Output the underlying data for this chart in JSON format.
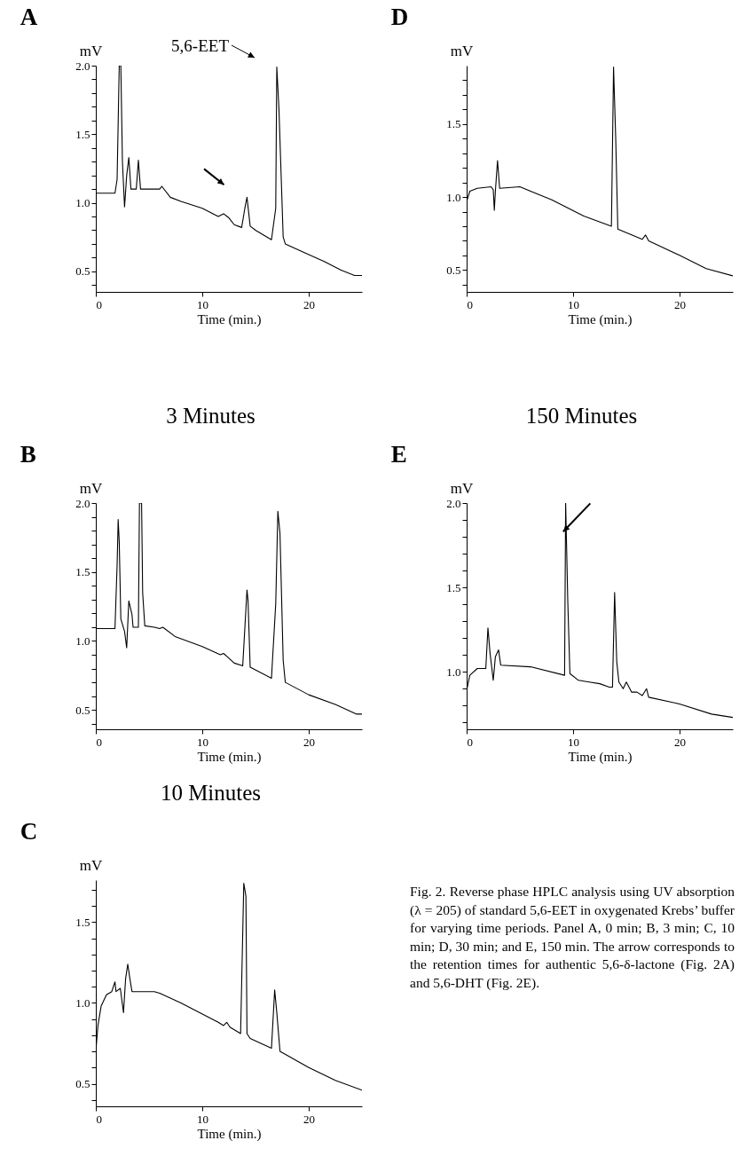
{
  "chart_data": [
    {
      "type": "line",
      "title": "A",
      "xlabel": "Time (min.)",
      "ylabel": "mV",
      "xlim": [
        0,
        25
      ],
      "xticks": [
        0,
        10,
        20
      ],
      "ylim": [
        0.35,
        2.0
      ],
      "yticks": [
        {
          "value": 0.4,
          "label": null
        },
        {
          "value": 0.5,
          "label": "0.5"
        },
        {
          "value": 0.6,
          "label": null
        },
        {
          "value": 0.7,
          "label": null
        },
        {
          "value": 0.8,
          "label": null
        },
        {
          "value": 0.9,
          "label": null
        },
        {
          "value": 1,
          "label": "1.0"
        },
        {
          "value": 1.1,
          "label": null
        },
        {
          "value": 1.2,
          "label": null
        },
        {
          "value": 1.3,
          "label": null
        },
        {
          "value": 1.4,
          "label": null
        },
        {
          "value": 1.5,
          "label": "1.5"
        },
        {
          "value": 1.6,
          "label": null
        },
        {
          "value": 1.7,
          "label": null
        },
        {
          "value": 1.8,
          "label": null
        },
        {
          "value": 1.9,
          "label": null
        },
        {
          "value": 2,
          "label": "2.0"
        }
      ],
      "annotations": [
        {
          "text": "5,6-EET",
          "x": 17,
          "y": 2.0
        }
      ],
      "series": [
        {
          "color": "#000000",
          "x": [
            0,
            1.8,
            2.0,
            2.2,
            2.35,
            2.5,
            2.7,
            2.9,
            3.1,
            3.3,
            3.8,
            4.0,
            4.2,
            6.0,
            6.2,
            7.0,
            8,
            10,
            11.5,
            12,
            12.5,
            13,
            13.7,
            14.0,
            14.2,
            14.5,
            15,
            16.5,
            16.9,
            17.0,
            17.2,
            17.6,
            17.8,
            19.5,
            21.5,
            23,
            24.3,
            25
          ],
          "values": [
            1.07,
            1.07,
            1.17,
            2.0,
            2.0,
            1.3,
            0.97,
            1.2,
            1.33,
            1.1,
            1.1,
            1.31,
            1.1,
            1.1,
            1.12,
            1.04,
            1.01,
            0.96,
            0.9,
            0.92,
            0.89,
            0.84,
            0.82,
            0.96,
            1.04,
            0.83,
            0.8,
            0.73,
            0.96,
            1.99,
            1.69,
            0.75,
            0.7,
            0.64,
            0.57,
            0.51,
            0.47,
            0.47
          ]
        }
      ]
    },
    {
      "type": "line",
      "title": "B",
      "subtitle": "3 Minutes",
      "xlabel": "Time (min.)",
      "ylabel": "mV",
      "xlim": [
        0,
        25
      ],
      "xticks": [
        0,
        10,
        20
      ],
      "ylim": [
        0.36,
        2.0
      ],
      "yticks": [
        {
          "value": 0.4,
          "label": null
        },
        {
          "value": 0.5,
          "label": "0.5"
        },
        {
          "value": 0.6,
          "label": null
        },
        {
          "value": 0.7,
          "label": null
        },
        {
          "value": 0.8,
          "label": null
        },
        {
          "value": 0.9,
          "label": null
        },
        {
          "value": 1,
          "label": "1.0"
        },
        {
          "value": 1.1,
          "label": null
        },
        {
          "value": 1.2,
          "label": null
        },
        {
          "value": 1.3,
          "label": null
        },
        {
          "value": 1.4,
          "label": null
        },
        {
          "value": 1.5,
          "label": "1.5"
        },
        {
          "value": 1.6,
          "label": null
        },
        {
          "value": 1.7,
          "label": null
        },
        {
          "value": 1.8,
          "label": null
        },
        {
          "value": 1.9,
          "label": null
        },
        {
          "value": 2,
          "label": "2.0"
        }
      ],
      "series": [
        {
          "color": "#000000",
          "x": [
            0,
            1.8,
            2.0,
            2.1,
            2.2,
            2.35,
            2.7,
            2.9,
            3.1,
            3.4,
            3.5,
            4.0,
            4.1,
            4.3,
            4.4,
            4.6,
            5.5,
            6.0,
            6.3,
            7.5,
            10,
            11.7,
            12,
            13,
            13.8,
            14.2,
            14.3,
            14.5,
            16.5,
            16.9,
            17.1,
            17.3,
            17.6,
            17.8,
            20,
            22.5,
            24.5,
            25
          ],
          "values": [
            1.09,
            1.09,
            1.55,
            1.88,
            1.72,
            1.16,
            1.07,
            0.95,
            1.29,
            1.19,
            1.1,
            1.1,
            2.0,
            2.0,
            1.35,
            1.11,
            1.1,
            1.09,
            1.1,
            1.03,
            0.96,
            0.9,
            0.91,
            0.84,
            0.82,
            1.37,
            1.29,
            0.81,
            0.73,
            1.27,
            1.94,
            1.78,
            0.86,
            0.7,
            0.61,
            0.54,
            0.47,
            0.47
          ]
        }
      ]
    },
    {
      "type": "line",
      "title": "C",
      "subtitle": "10 Minutes",
      "xlabel": "Time (min.)",
      "ylabel": "mV",
      "xlim": [
        0,
        25
      ],
      "xticks": [
        0,
        10,
        20
      ],
      "ylim": [
        0.36,
        1.76
      ],
      "yticks": [
        {
          "value": 0.4,
          "label": null
        },
        {
          "value": 0.5,
          "label": "0.5"
        },
        {
          "value": 0.6,
          "label": null
        },
        {
          "value": 0.7,
          "label": null
        },
        {
          "value": 0.8,
          "label": null
        },
        {
          "value": 0.9,
          "label": null
        },
        {
          "value": 1,
          "label": "1.0"
        },
        {
          "value": 1.1,
          "label": null
        },
        {
          "value": 1.2,
          "label": null
        },
        {
          "value": 1.3,
          "label": null
        },
        {
          "value": 1.4,
          "label": null
        },
        {
          "value": 1.5,
          "label": "1.5"
        },
        {
          "value": 1.6,
          "label": null
        },
        {
          "value": 1.7,
          "label": null
        }
      ],
      "series": [
        {
          "color": "#000000",
          "x": [
            0,
            0.2,
            0.5,
            1.0,
            1.5,
            1.8,
            1.9,
            2.3,
            2.6,
            2.8,
            3.0,
            3.2,
            3.4,
            5.5,
            6.0,
            8,
            11.5,
            12,
            12.3,
            12.6,
            13.6,
            13.9,
            14.1,
            14.2,
            14.5,
            16.5,
            16.8,
            17.0,
            17.3,
            20,
            22.5,
            25
          ],
          "values": [
            0.7,
            0.86,
            0.98,
            1.05,
            1.07,
            1.13,
            1.07,
            1.09,
            0.94,
            1.15,
            1.24,
            1.15,
            1.07,
            1.07,
            1.06,
            1.0,
            0.88,
            0.86,
            0.88,
            0.85,
            0.81,
            1.74,
            1.66,
            0.81,
            0.78,
            0.72,
            1.08,
            0.94,
            0.7,
            0.6,
            0.52,
            0.46
          ]
        }
      ]
    },
    {
      "type": "line",
      "title": "D",
      "xlabel": "Time (min.)",
      "ylabel": "mV",
      "xlim": [
        0,
        25
      ],
      "xticks": [
        0,
        10,
        20
      ],
      "ylim": [
        0.35,
        1.9
      ],
      "yticks": [
        {
          "value": 0.4,
          "label": null
        },
        {
          "value": 0.5,
          "label": "0.5"
        },
        {
          "value": 0.6,
          "label": null
        },
        {
          "value": 0.7,
          "label": null
        },
        {
          "value": 0.8,
          "label": null
        },
        {
          "value": 0.9,
          "label": null
        },
        {
          "value": 1,
          "label": "1.0"
        },
        {
          "value": 1.1,
          "label": null
        },
        {
          "value": 1.2,
          "label": null
        },
        {
          "value": 1.3,
          "label": null
        },
        {
          "value": 1.4,
          "label": null
        },
        {
          "value": 1.5,
          "label": "1.5"
        },
        {
          "value": 1.6,
          "label": null
        },
        {
          "value": 1.7,
          "label": null
        },
        {
          "value": 1.8,
          "label": null
        }
      ],
      "series": [
        {
          "color": "#000000",
          "x": [
            0,
            0.3,
            1,
            2.3,
            2.5,
            2.6,
            2.7,
            2.9,
            3.1,
            5,
            6,
            8,
            11,
            13.6,
            13.8,
            14.0,
            14.2,
            16.5,
            16.8,
            17.1,
            20,
            22.5,
            25
          ],
          "values": [
            0.97,
            1.04,
            1.06,
            1.07,
            1.05,
            0.91,
            1.04,
            1.25,
            1.06,
            1.07,
            1.04,
            0.98,
            0.87,
            0.8,
            1.89,
            1.41,
            0.78,
            0.71,
            0.74,
            0.7,
            0.6,
            0.51,
            0.46
          ]
        }
      ]
    },
    {
      "type": "line",
      "title": "E",
      "subtitle": "150 Minutes",
      "xlabel": "Time (min.)",
      "ylabel": "mV",
      "xlim": [
        0,
        25
      ],
      "xticks": [
        0,
        10,
        20
      ],
      "ylim": [
        0.66,
        2.0
      ],
      "yticks": [
        {
          "value": 0.7,
          "label": null
        },
        {
          "value": 0.8,
          "label": null
        },
        {
          "value": 0.9,
          "label": null
        },
        {
          "value": 1,
          "label": "1.0"
        },
        {
          "value": 1.1,
          "label": null
        },
        {
          "value": 1.2,
          "label": null
        },
        {
          "value": 1.3,
          "label": null
        },
        {
          "value": 1.4,
          "label": null
        },
        {
          "value": 1.5,
          "label": "1.5"
        },
        {
          "value": 1.6,
          "label": null
        },
        {
          "value": 1.7,
          "label": null
        },
        {
          "value": 1.8,
          "label": null
        },
        {
          "value": 1.9,
          "label": null
        },
        {
          "value": 2,
          "label": "2.0"
        }
      ],
      "annotations": [
        "Fig. 2. Reverse phase HPLC analysis using UV absorption (λ = 205) of standard 5,6-EET in oxygenated Krebs’ buffer for varying time periods. Panel A, 0 min; B, 3 min; C, 10 min; D, 30 min; and E, 150 min. The arrow corresponds to the retention times for authentic 5,6-δ-lactone (Fig. 2A) and 5,6-DHT (Fig. 2E)."
      ],
      "series": [
        {
          "color": "#000000",
          "x": [
            0,
            0.3,
            1,
            1.8,
            2.0,
            2.2,
            2.5,
            2.7,
            3.0,
            3.2,
            6,
            9.2,
            9.3,
            9.5,
            9.7,
            10.5,
            11.5,
            12.5,
            13.4,
            13.7,
            13.9,
            14.1,
            14.3,
            14.7,
            15.0,
            15.5,
            16.0,
            16.5,
            16.9,
            17.1,
            20,
            23,
            25
          ],
          "values": [
            0.89,
            0.98,
            1.02,
            1.02,
            1.26,
            1.11,
            0.95,
            1.09,
            1.13,
            1.04,
            1.03,
            0.98,
            2.0,
            1.42,
            0.99,
            0.95,
            0.94,
            0.93,
            0.91,
            0.91,
            1.47,
            1.06,
            0.94,
            0.9,
            0.94,
            0.88,
            0.88,
            0.86,
            0.9,
            0.85,
            0.81,
            0.75,
            0.73
          ]
        }
      ]
    }
  ]
}
